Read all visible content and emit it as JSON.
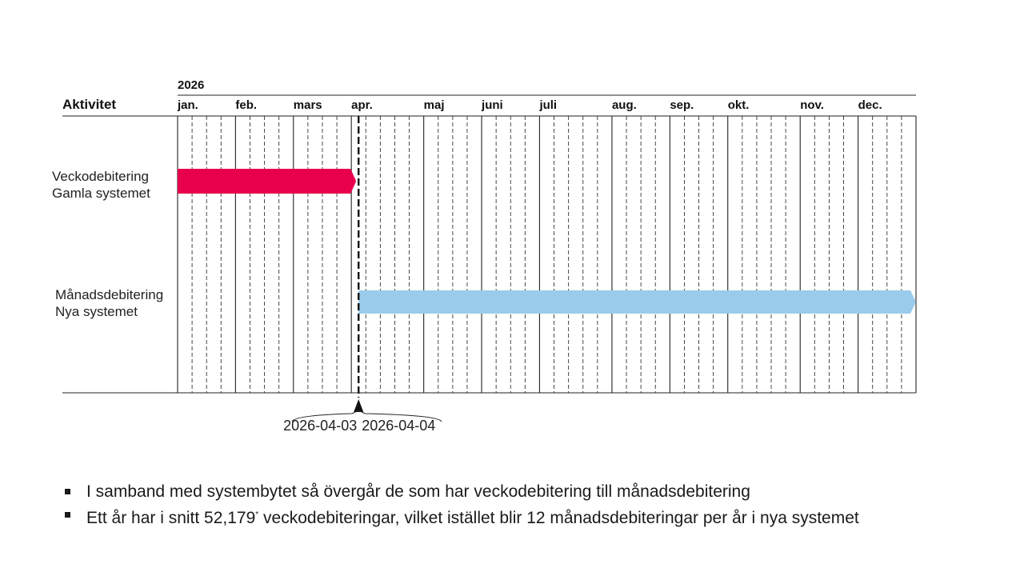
{
  "gantt": {
    "year": "2026",
    "activity_header": "Aktivitet",
    "months": [
      "jan.",
      "feb.",
      "mars",
      "apr.",
      "maj",
      "juni",
      "juli",
      "aug.",
      "sep.",
      "okt.",
      "nov.",
      "dec."
    ],
    "weeks_per_month": [
      4,
      4,
      4,
      5,
      4,
      4,
      5,
      4,
      4,
      5,
      4,
      4
    ],
    "tasks": [
      {
        "label_line1": "Veckodebitering",
        "label_line2": "Gamla systemet",
        "start": "2026-01-01",
        "end": "2026-04-03",
        "color": "#E8004C"
      },
      {
        "label_line1": "Månadsdebitering",
        "label_line2": "Nya systemet",
        "start": "2026-04-04",
        "end": "2026-12-31",
        "color": "#9ACBEB"
      }
    ],
    "milestone": {
      "dates": [
        "2026-04-03",
        "2026-04-04"
      ],
      "label_left": "2026-04-03",
      "label_right": "2026-04-04"
    }
  },
  "bullets": [
    {
      "text": "I samband med systembytet så övergår de som har veckodebitering till månadsdebitering"
    },
    {
      "text_before": "Ett år har i snitt 52,179",
      "footnote_mark": "*",
      "text_after": " veckodebiteringar, vilket istället blir 12 månadsdebiteringar per år i nya systemet"
    }
  ]
}
